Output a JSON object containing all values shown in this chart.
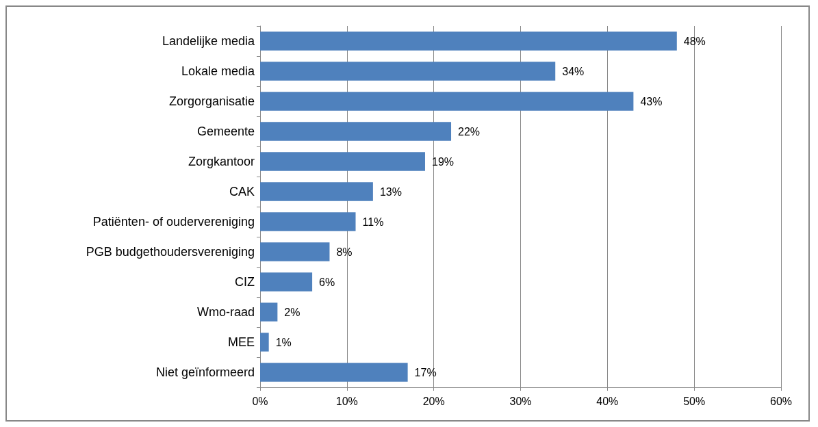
{
  "chart_data": {
    "type": "bar",
    "orientation": "horizontal",
    "categories": [
      "Landelijke media",
      "Lokale media",
      "Zorgorganisatie",
      "Gemeente",
      "Zorgkantoor",
      "CAK",
      "Patiënten- of oudervereniging",
      "PGB budgethoudersvereniging",
      "CIZ",
      "Wmo-raad",
      "MEE",
      "Niet geïnformeerd"
    ],
    "values": [
      48,
      34,
      43,
      22,
      19,
      13,
      11,
      8,
      6,
      2,
      1,
      17
    ],
    "value_labels": [
      "48%",
      "34%",
      "43%",
      "22%",
      "19%",
      "13%",
      "11%",
      "8%",
      "6%",
      "2%",
      "1%",
      "17%"
    ],
    "color": "#4f81bd",
    "xlim": [
      0,
      60
    ],
    "xticks": [
      {
        "value": 0,
        "label": "0%"
      },
      {
        "value": 10,
        "label": "10%"
      },
      {
        "value": 20,
        "label": "20%"
      },
      {
        "value": 30,
        "label": "30%"
      },
      {
        "value": 40,
        "label": "40%"
      },
      {
        "value": 50,
        "label": "50%"
      },
      {
        "value": 60,
        "label": "60%"
      }
    ],
    "grid": "x"
  }
}
